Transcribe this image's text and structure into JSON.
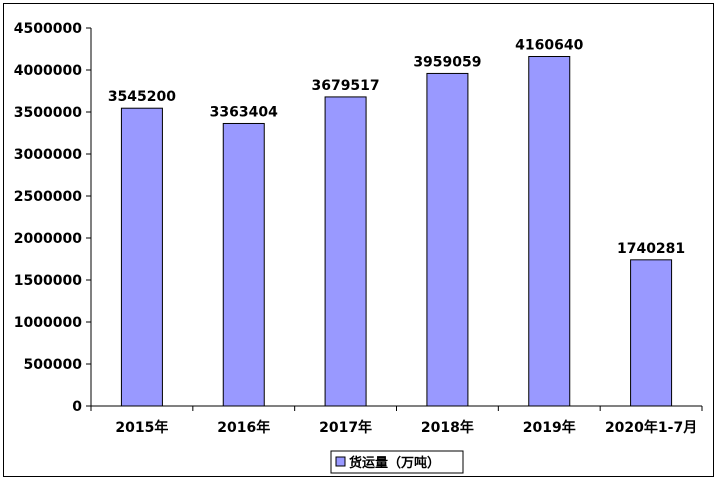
{
  "chart_data": {
    "type": "bar",
    "categories": [
      "2015年",
      "2016年",
      "2017年",
      "2018年",
      "2019年",
      "2020年1-7月"
    ],
    "series": [
      {
        "name": "货运量（万吨）",
        "values": [
          3545200,
          3363404,
          3679517,
          3959059,
          4160640,
          1740281
        ]
      }
    ],
    "data_labels": [
      "3545200",
      "3363404",
      "3679517",
      "3959059",
      "4160640",
      "1740281"
    ],
    "y_ticks": [
      "0",
      "500000",
      "1000000",
      "1500000",
      "2000000",
      "2500000",
      "3000000",
      "3500000",
      "4000000",
      "4500000"
    ],
    "ylim": [
      0,
      4500000
    ],
    "grid": false,
    "legend_position": "bottom",
    "colors": {
      "bar_fill": "#9999ff",
      "bar_stroke": "#000000",
      "axis": "#000000"
    }
  },
  "legend": {
    "label": "货运量（万吨）"
  }
}
